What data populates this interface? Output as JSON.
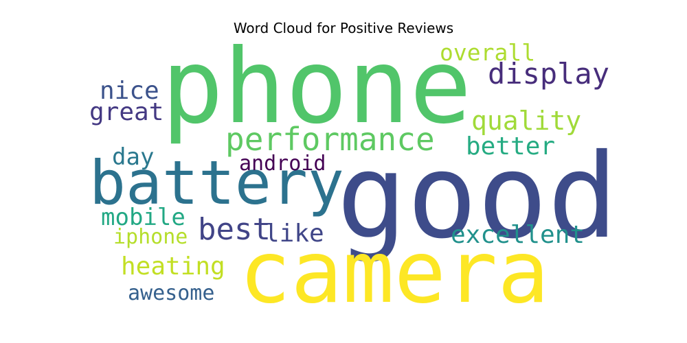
{
  "chart_data": {
    "type": "wordcloud",
    "title": "Word Cloud for Positive Reviews",
    "words": [
      {
        "text": "phone",
        "color": "#51c56a"
      },
      {
        "text": "good",
        "color": "#3e4c8a"
      },
      {
        "text": "camera",
        "color": "#fde725"
      },
      {
        "text": "battery",
        "color": "#2c728e"
      },
      {
        "text": "performance",
        "color": "#5ec962"
      },
      {
        "text": "display",
        "color": "#472d7b"
      },
      {
        "text": "overall",
        "color": "#addc30"
      },
      {
        "text": "nice",
        "color": "#3b528b"
      },
      {
        "text": "great",
        "color": "#443983"
      },
      {
        "text": "quality",
        "color": "#a0da39"
      },
      {
        "text": "better",
        "color": "#25ab82"
      },
      {
        "text": "day",
        "color": "#2a788e"
      },
      {
        "text": "android",
        "color": "#440154"
      },
      {
        "text": "mobile",
        "color": "#22a884"
      },
      {
        "text": "best",
        "color": "#414487"
      },
      {
        "text": "like",
        "color": "#404688"
      },
      {
        "text": "excellent",
        "color": "#21918c"
      },
      {
        "text": "iphone",
        "color": "#b5de2b"
      },
      {
        "text": "heating",
        "color": "#c2df23"
      },
      {
        "text": "awesome",
        "color": "#35608d"
      }
    ]
  }
}
